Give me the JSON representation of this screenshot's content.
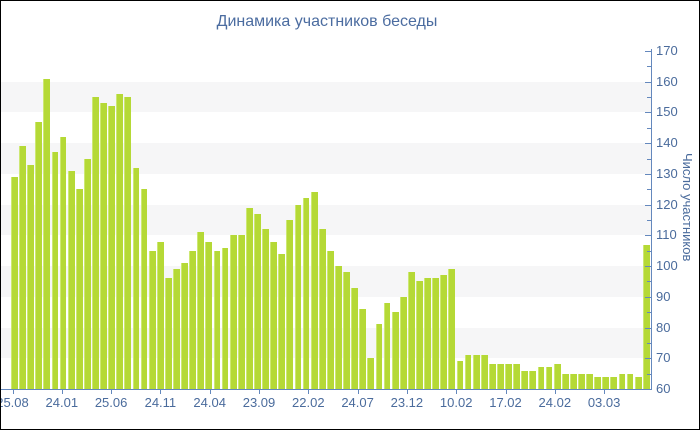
{
  "title": "Динамика участников беседы",
  "chart_data": {
    "type": "bar",
    "title": "Динамика участников беседы",
    "xlabel": "",
    "ylabel": "Число участников",
    "ylim": [
      60,
      170
    ],
    "y_ticks": [
      60,
      70,
      80,
      90,
      100,
      110,
      120,
      130,
      140,
      150,
      160,
      170
    ],
    "y_minor_tick_step": 5,
    "grid": "alternating horizontal stripes every 10 units",
    "legend_position": "none",
    "x_tick_labels": [
      "25.08",
      "24.01",
      "25.06",
      "24.11",
      "24.04",
      "23.09",
      "22.02",
      "24.07",
      "23.12",
      "10.02",
      "17.02",
      "24.02",
      "03.03"
    ],
    "values": [
      129,
      139,
      133,
      147,
      161,
      137,
      142,
      131,
      125,
      135,
      155,
      153,
      152,
      156,
      155,
      132,
      125,
      105,
      108,
      96,
      99,
      101,
      105,
      111,
      108,
      105,
      106,
      110,
      110,
      119,
      117,
      112,
      108,
      104,
      115,
      120,
      122,
      124,
      112,
      105,
      100,
      98,
      93,
      86,
      70,
      81,
      88,
      85,
      90,
      98,
      95,
      96,
      96,
      97,
      99,
      69,
      71,
      71,
      71,
      68,
      68,
      68,
      68,
      66,
      66,
      67,
      67,
      68,
      65,
      65,
      65,
      65,
      64,
      64,
      64,
      65,
      65,
      64,
      107
    ],
    "colors": {
      "bar": "#b5d936",
      "bar_highlight": "#cde873",
      "axis": "#6488bd",
      "text": "#4a6b9c",
      "title_text": "#4b6ca0",
      "stripe": "#f6f6f7",
      "background": "#ffffff"
    }
  }
}
